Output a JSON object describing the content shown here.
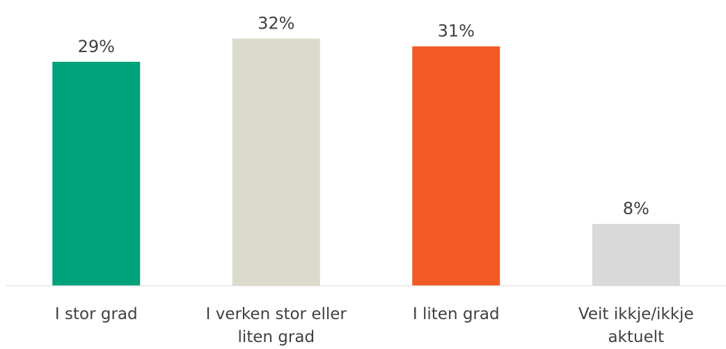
{
  "chart_data": {
    "type": "bar",
    "categories": [
      "I stor grad",
      "I verken stor eller liten grad",
      "I liten grad",
      "Veit ikkje/ikkje aktuelt"
    ],
    "values": [
      29,
      32,
      31,
      8
    ],
    "value_labels": [
      "29%",
      "32%",
      "31%",
      "8%"
    ],
    "colors": [
      "#00a27a",
      "#dcdacb",
      "#f15a24",
      "#d9d9d9"
    ],
    "ylim": [
      0,
      37
    ]
  }
}
